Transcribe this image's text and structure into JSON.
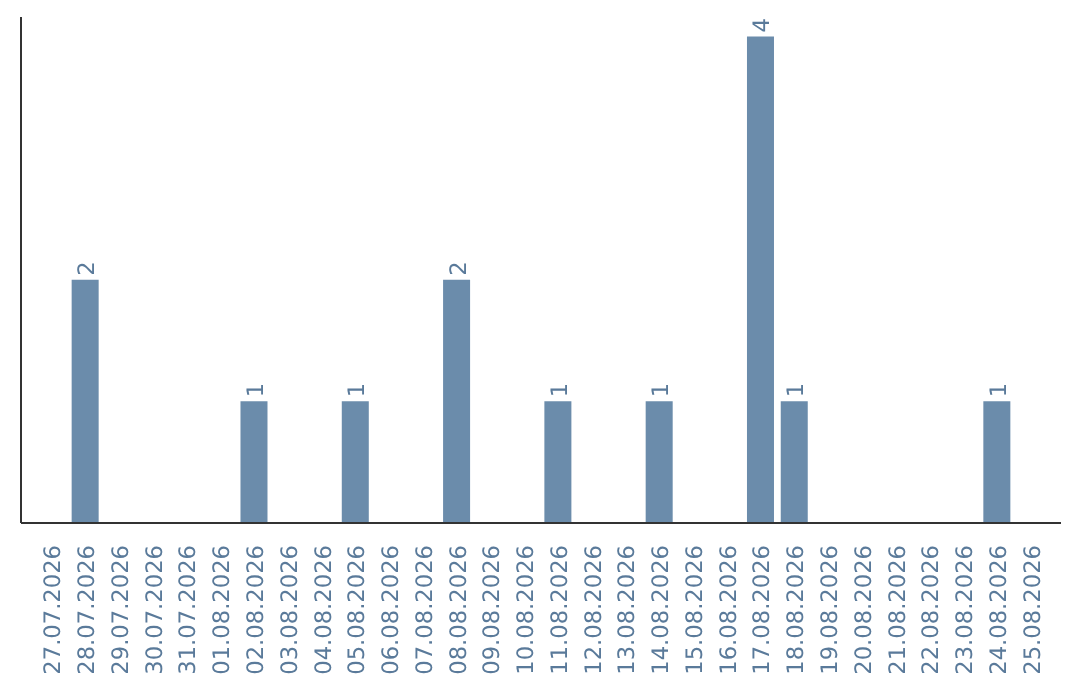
{
  "chart_data": {
    "type": "bar",
    "categories": [
      "27.07.2026",
      "28.07.2026",
      "29.07.2026",
      "30.07.2026",
      "31.07.2026",
      "01.08.2026",
      "02.08.2026",
      "03.08.2026",
      "04.08.2026",
      "05.08.2026",
      "06.08.2026",
      "07.08.2026",
      "08.08.2026",
      "09.08.2026",
      "10.08.2026",
      "11.08.2026",
      "12.08.2026",
      "13.08.2026",
      "14.08.2026",
      "15.08.2026",
      "16.08.2026",
      "17.08.2026",
      "18.08.2026",
      "19.08.2026",
      "20.08.2026",
      "21.08.2026",
      "22.08.2026",
      "23.08.2026",
      "24.08.2026",
      "25.08.2026"
    ],
    "values": [
      0,
      2,
      0,
      0,
      0,
      0,
      1,
      0,
      0,
      1,
      0,
      0,
      2,
      0,
      0,
      1,
      0,
      0,
      1,
      0,
      0,
      4,
      1,
      0,
      0,
      0,
      0,
      0,
      1,
      0
    ],
    "value_labels": [
      null,
      "2",
      null,
      null,
      null,
      null,
      "1",
      null,
      null,
      "1",
      null,
      null,
      "2",
      null,
      null,
      "1",
      null,
      null,
      "1",
      null,
      null,
      "4",
      "1",
      null,
      null,
      null,
      null,
      null,
      "1",
      null
    ],
    "color": "#6b8cab",
    "grid": false,
    "tick_labels": "x"
  }
}
